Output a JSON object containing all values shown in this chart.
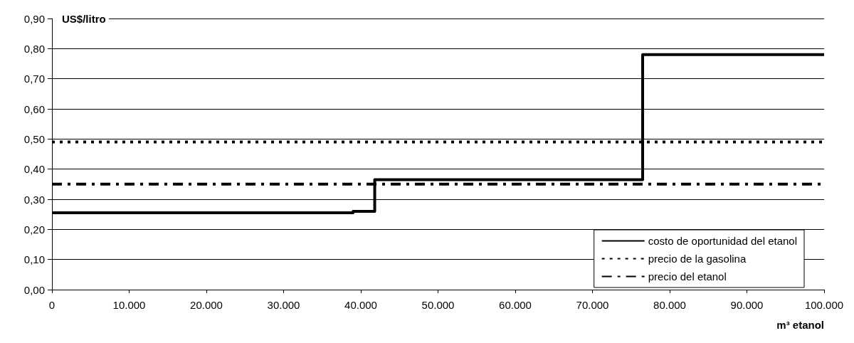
{
  "chart_data": {
    "type": "step",
    "ylabel": "US$/litro",
    "xlabel": "m³ etanol",
    "series": [
      {
        "name": "costo de oportunidad del etanol",
        "color": "#000000",
        "line_style": "solid",
        "x": [
          0,
          39000,
          41800,
          76500,
          100000
        ],
        "values": [
          0.255,
          0.26,
          0.365,
          0.78,
          0.78
        ]
      },
      {
        "name": "precio de la gasolina",
        "type": "line",
        "color": "#000000",
        "line_style": "dotted",
        "x": [
          0,
          100000
        ],
        "values": [
          0.49,
          0.49
        ]
      },
      {
        "name": "precio del etanol",
        "type": "line",
        "color": "#000000",
        "line_style": "dashed",
        "x": [
          0,
          100000
        ],
        "values": [
          0.35,
          0.35
        ]
      }
    ],
    "xlim": [
      0,
      100000
    ],
    "xticks": [
      0,
      {
        "value": 10000,
        "label": "10.000"
      },
      {
        "value": 20000,
        "label": "20.000"
      },
      {
        "value": 30000,
        "label": "30.000"
      },
      {
        "value": 40000,
        "label": "40.000"
      },
      {
        "value": 50000,
        "label": "50.000"
      },
      {
        "value": 60000,
        "label": "60.000"
      },
      {
        "value": 70000,
        "label": "70.000"
      },
      {
        "value": 80000,
        "label": "80.000"
      },
      {
        "value": 90000,
        "label": "90.000"
      },
      {
        "value": 100000,
        "label": "100.000"
      }
    ],
    "ylim": [
      0,
      0.9
    ],
    "yticks": [
      {
        "value": 0,
        "label": "0,00"
      },
      {
        "value": 0.1,
        "label": "0,10"
      },
      {
        "value": 0.2,
        "label": "0,20"
      },
      {
        "value": 0.3,
        "label": "0,30"
      },
      {
        "value": 0.4,
        "label": "0,40"
      },
      {
        "value": 0.5,
        "label": "0,50"
      },
      {
        "value": 0.6,
        "label": "0,60"
      },
      {
        "value": 0.7,
        "label": "0,70"
      },
      {
        "value": 0.8,
        "label": "0,80"
      },
      {
        "value": 0.9,
        "label": "0,90"
      }
    ],
    "grid": "y",
    "legend": "bottom right",
    "marker": "none"
  }
}
